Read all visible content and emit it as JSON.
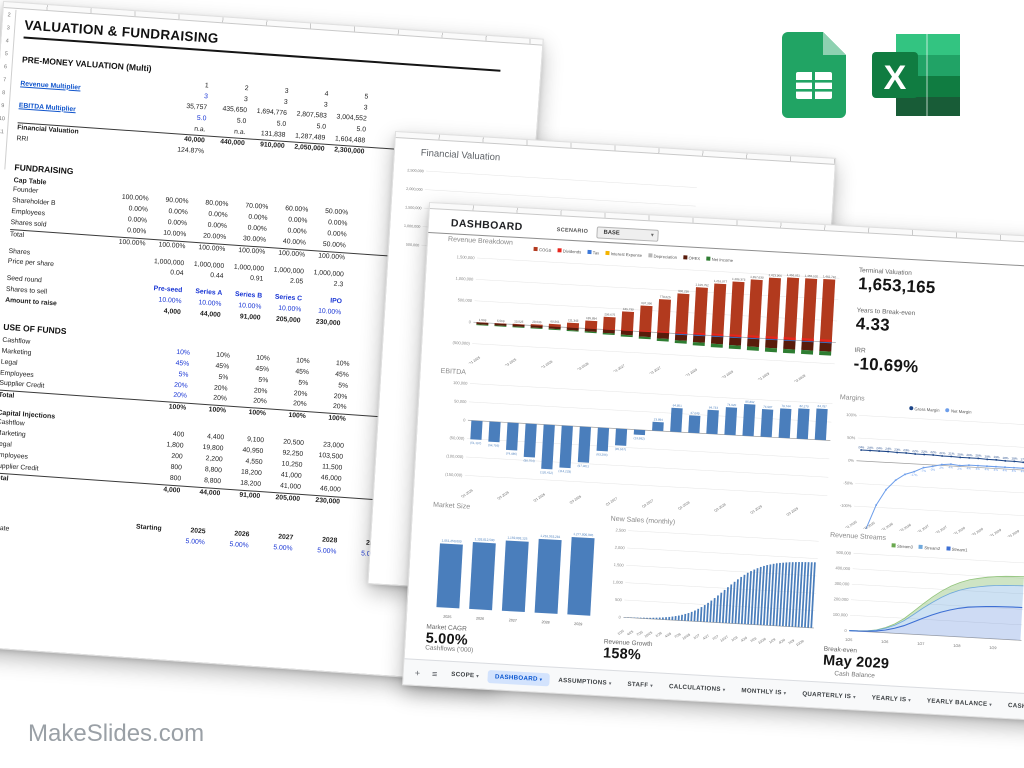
{
  "watermark": "MakeSlides.com",
  "icons": {
    "add_tab": "+",
    "tab_menu": "≡",
    "caret_down": "▾"
  },
  "left_sheet": {
    "row_numbers": [
      "2",
      "3",
      "4",
      "5",
      "6",
      "7",
      "8",
      "9",
      "10",
      "11"
    ],
    "title": "VALUATION & FUNDRAISING",
    "premoney": {
      "heading": "PRE-MONEY VALUATION (Multi)",
      "cols": [
        "1",
        "2",
        "3",
        "4",
        "5"
      ],
      "rows": [
        {
          "label": "Revenue Multiplier",
          "link": true,
          "lines": [
            {
              "v": [
                "3",
                "3",
                "3",
                "3",
                "3"
              ],
              "blueFirst": true
            },
            {
              "v": [
                "35,757",
                "435,650",
                "1,694,776",
                "2,807,583",
                "3,004,552"
              ]
            }
          ]
        },
        {
          "label": "EBITDA Multiplier",
          "link": true,
          "lines": [
            {
              "v": [
                "5.0",
                "5.0",
                "5.0",
                "5.0",
                "5.0"
              ],
              "blueFirst": true
            },
            {
              "v": [
                "n.a.",
                "n.a.",
                "131,838",
                "1,287,489",
                "1,604,488"
              ]
            }
          ]
        },
        {
          "label": "Financial Valuation",
          "bold": true,
          "topline": true,
          "lines": [
            {
              "v": [
                "40,000",
                "440,000",
                "910,000",
                "2,050,000",
                "2,300,000"
              ]
            }
          ]
        },
        {
          "label": "RRI",
          "lines": [
            {
              "v": [
                "124.87%",
                "",
                "",
                "",
                ""
              ]
            }
          ]
        }
      ]
    },
    "fundraising": {
      "heading": "FUNDRAISING",
      "subhead": "Cap Table",
      "rows": [
        {
          "label": "Founder",
          "v": [
            "100.00%",
            "90.00%",
            "80.00%",
            "70.00%",
            "60.00%",
            "50.00%"
          ]
        },
        {
          "label": "Shareholder B",
          "v": [
            "0.00%",
            "0.00%",
            "0.00%",
            "0.00%",
            "0.00%",
            "0.00%"
          ]
        },
        {
          "label": "Employees",
          "v": [
            "0.00%",
            "0.00%",
            "0.00%",
            "0.00%",
            "0.00%",
            "0.00%"
          ]
        },
        {
          "label": "Shares sold",
          "v": [
            "0.00%",
            "10.00%",
            "20.00%",
            "30.00%",
            "40.00%",
            "50.00%"
          ]
        },
        {
          "label": "Total",
          "v": [
            "100.00%",
            "100.00%",
            "100.00%",
            "100.00%",
            "100.00%",
            "100.00%"
          ],
          "topline": true
        },
        {
          "label": "",
          "v": [
            "",
            "",
            "",
            "",
            "",
            ""
          ],
          "spacer": true
        },
        {
          "label": "Shares",
          "v": [
            "",
            "1,000,000",
            "1,000,000",
            "1,000,000",
            "1,000,000",
            "1,000,000"
          ]
        },
        {
          "label": "Price per share",
          "v": [
            "",
            "0.04",
            "0.44",
            "0.91",
            "2.05",
            "2.3"
          ]
        },
        {
          "label": "",
          "v": [
            "",
            "",
            "",
            "",
            "",
            ""
          ],
          "spacer": true
        },
        {
          "label": "Seed round",
          "v": [
            "",
            "Pre-seed",
            "Series A",
            "Series B",
            "Series C",
            "IPO"
          ],
          "blue": true,
          "boldvals": true
        },
        {
          "label": "Shares to sell",
          "v": [
            "",
            "10.00%",
            "10.00%",
            "10.00%",
            "10.00%",
            "10.00%"
          ],
          "blue": true
        },
        {
          "label": "Amount to raise",
          "v": [
            "",
            "4,000",
            "44,000",
            "91,000",
            "205,000",
            "230,000"
          ],
          "bold": true
        }
      ]
    },
    "use_of_funds": {
      "heading": "USE OF FUNDS",
      "pct_rows": [
        {
          "label": "Cashflow",
          "v": [
            "10%",
            "10%",
            "10%",
            "10%",
            "10%"
          ],
          "blueFirst": true
        },
        {
          "label": "Marketing",
          "v": [
            "45%",
            "45%",
            "45%",
            "45%",
            "45%"
          ],
          "blueFirst": true
        },
        {
          "label": "Legal",
          "v": [
            "5%",
            "5%",
            "5%",
            "5%",
            "5%"
          ],
          "blueFirst": true
        },
        {
          "label": "Employees",
          "v": [
            "20%",
            "20%",
            "20%",
            "20%",
            "20%"
          ],
          "blueFirst": true
        },
        {
          "label": "Supplier Credit",
          "v": [
            "20%",
            "20%",
            "20%",
            "20%",
            "20%"
          ],
          "blueFirst": true
        },
        {
          "label": "Total",
          "v": [
            "100%",
            "100%",
            "100%",
            "100%",
            "100%"
          ],
          "bold": true,
          "topline": true
        }
      ],
      "subhead": "Capital Injections",
      "amount_rows": [
        {
          "label": "Cashflow",
          "v": [
            "400",
            "4,400",
            "9,100",
            "20,500",
            "23,000"
          ]
        },
        {
          "label": "Marketing",
          "v": [
            "1,800",
            "19,800",
            "40,950",
            "92,250",
            "103,500"
          ]
        },
        {
          "label": "Legal",
          "v": [
            "200",
            "2,200",
            "4,550",
            "10,250",
            "11,500"
          ]
        },
        {
          "label": "Employees",
          "v": [
            "800",
            "8,800",
            "18,200",
            "41,000",
            "46,000"
          ]
        },
        {
          "label": "Supplier Credit",
          "v": [
            "800",
            "8,800",
            "18,200",
            "41,000",
            "46,000"
          ]
        },
        {
          "label": "Total",
          "v": [
            "4,000",
            "44,000",
            "91,000",
            "205,000",
            "230,000"
          ],
          "bold": true,
          "topline": true
        }
      ]
    },
    "dcf": {
      "heading": "C",
      "cols": [
        "Starting",
        "2025",
        "2026",
        "2027",
        "2028",
        "2029"
      ],
      "rows": [
        {
          "label": "e Rate",
          "v": [
            "",
            "5.00%",
            "5.00%",
            "5.00%",
            "5.00%",
            "5.00%"
          ],
          "blue": true
        }
      ]
    }
  },
  "mid_sheet": {
    "title": "Financial Valuation",
    "yticks": [
      2500000,
      2000000,
      1500000,
      1000000,
      500000
    ]
  },
  "dashboard": {
    "title": "DASHBOARD",
    "scenario": {
      "label": "SCENARIO",
      "value": "BASE"
    },
    "kpis": [
      {
        "label": "Terminal Valuation",
        "value": "1,653,165"
      },
      {
        "label": "Years to Break-even",
        "value": "4.33"
      },
      {
        "label": "IRR",
        "value": "-10.69%"
      }
    ],
    "market_cagr": {
      "label": "Market CAGR",
      "value": "5.00%"
    },
    "revenue_growth": {
      "label": "Revenue Growth",
      "value": "158%"
    },
    "break_even": {
      "label": "Break-even",
      "value": "May 2029"
    },
    "cashflows_title": "Cashflows ('000)",
    "cash_balance_title": "Cash Balance",
    "tabs": {
      "items": [
        "SCOPE",
        "DASHBOARD",
        "ASSUMPTIONS",
        "STAFF",
        "CALCULATIONS",
        "MONTHLY IS",
        "QUARTERLY IS",
        "YEARLY IS",
        "YEARLY BALANCE",
        "CASHFLOW",
        "VALUATION"
      ],
      "active": "DASHBOARD"
    },
    "charts": {
      "quarter_categories": [
        "Q1 2025",
        "Q2 2025",
        "Q3 2025",
        "Q4 2025",
        "Q1 2026",
        "Q2 2026",
        "Q3 2026",
        "Q4 2026",
        "Q1 2027",
        "Q2 2027",
        "Q3 2027",
        "Q4 2027",
        "Q1 2028",
        "Q2 2028",
        "Q3 2028",
        "Q4 2028",
        "Q1 2029",
        "Q2 2029",
        "Q3 2029",
        "Q4 2029"
      ],
      "revenue_breakdown": {
        "type": "stacked-bar",
        "title": "Revenue Breakdown",
        "legend": [
          {
            "label": "COGS",
            "color": "#b23a1e"
          },
          {
            "label": "Dividends",
            "color": "#e8251c"
          },
          {
            "label": "Tax",
            "color": "#3c78d8"
          },
          {
            "label": "Interest Expense",
            "color": "#f4b400"
          },
          {
            "label": "Depreciation",
            "color": "#b7b7b7"
          },
          {
            "label": "OPEX",
            "color": "#591c0b"
          },
          {
            "label": "Net Income",
            "color": "#2e7d32"
          }
        ],
        "totals": [
          1569,
          5569,
          13525,
          29636,
          60561,
          111343,
          185894,
          296675,
          445730,
          607356,
          778625,
          936295,
          1105752,
          1216077,
          1286373,
          1357630,
          1423966,
          1452011,
          1455102,
          1462742
        ],
        "ymin": -500000,
        "ymax": 1600000,
        "yticks": [
          1500000,
          1000000,
          500000,
          0,
          -500000
        ]
      },
      "ebitda": {
        "type": "bar",
        "title": "EBITDA",
        "color": "#4a7ebc",
        "values": [
          -51197,
          -54756,
          -74486,
          -90754,
          -120412,
          -114233,
          -97021,
          -63296,
          -45667,
          -13582,
          23894,
          64851,
          47049,
          64733,
          74920,
          85892,
          74987,
          79744,
          82270,
          84787
        ],
        "ymin": -150000,
        "ymax": 100000,
        "yticks": [
          100000,
          50000,
          0,
          -50000,
          -100000,
          -150000
        ]
      },
      "margins": {
        "type": "line",
        "title": "Margins",
        "legend": [
          {
            "label": "Gross Margin",
            "color": "#1c4587"
          },
          {
            "label": "Net Margin",
            "color": "#6d9eeb"
          }
        ],
        "series": [
          {
            "name": "Gross Margin",
            "color": "#1c4587",
            "values": [
              24,
              24,
              24,
              24,
              23,
              23,
              22,
              22,
              22,
              21,
              21,
              20,
              20,
              20,
              19,
              19,
              18,
              18,
              17,
              17
            ]
          },
          {
            "name": "Net Margin",
            "color": "#6d9eeb",
            "values": [
              -240,
              -150,
              -95,
              -60,
              -38,
              -24,
              -17,
              -7,
              -3,
              2,
              4,
              2,
              4,
              4,
              4,
              4,
              4,
              4,
              4,
              3
            ]
          }
        ],
        "ymin": -100,
        "ymax": 100,
        "yticks": [
          100,
          50,
          0,
          -50,
          -100
        ]
      },
      "market_size": {
        "type": "bar",
        "title": "Market Size",
        "color": "#4a7ebc",
        "categories": [
          "2025",
          "2026",
          "2027",
          "2028",
          "2029"
        ],
        "values": [
          1051250000,
          1103812500,
          1159003125,
          1216953281,
          1277800945
        ],
        "ymin": 0,
        "ymax": 1400000000,
        "yticks": []
      },
      "new_sales": {
        "type": "bar",
        "title": "New Sales (monthly)",
        "color": "#4a7ebc",
        "values": [
          7,
          8,
          10,
          12,
          14,
          17,
          21,
          25,
          30,
          36,
          43,
          51,
          61,
          73,
          86,
          101,
          119,
          140,
          166,
          196,
          227,
          266,
          311,
          364,
          420,
          483,
          551,
          622,
          700,
          782,
          866,
          950,
          1034,
          1118,
          1200,
          1278,
          1349,
          1417,
          1480,
          1536,
          1584,
          1627,
          1668,
          1704,
          1734,
          1758,
          1780,
          1799,
          1814,
          1827,
          1839,
          1850,
          1858,
          1864,
          1870,
          1875,
          1879,
          1883,
          1886,
          1888
        ],
        "xticks": [
          "1/25",
          "4/25",
          "7/25",
          "10/25",
          "1/26",
          "4/26",
          "7/26",
          "10/26",
          "1/27",
          "4/27",
          "7/27",
          "10/27",
          "1/28",
          "4/28",
          "7/28",
          "10/28",
          "1/29",
          "4/29",
          "7/29",
          "10/29"
        ],
        "ymin": 0,
        "ymax": 2500,
        "yticks": [
          2500,
          2000,
          1500,
          1000,
          500,
          0
        ]
      },
      "revenue_streams": {
        "type": "area",
        "title": "Revenue Streams",
        "legend": [
          {
            "label": "Stream3",
            "color": "#6aa84f"
          },
          {
            "label": "Stream2",
            "color": "#6fa8dc"
          },
          {
            "label": "Stream1",
            "color": "#3d6fd4"
          }
        ],
        "series": [
          {
            "name": "Stream1",
            "color": "#3d6fd4",
            "fill": "rgba(61,111,212,0.25)",
            "values": [
              800,
              1500,
              3000,
              8000,
              18000,
              32000,
              52000,
              78000,
              105000,
              130000,
              152000,
              170000,
              184000,
              194000,
              200000,
              205000,
              208000,
              210000,
              211000,
              212000
            ]
          },
          {
            "name": "Stream2",
            "color": "#6fa8dc",
            "fill": "rgba(111,168,220,0.35)",
            "values": [
              400,
              900,
              2000,
              5000,
              11000,
              20000,
              33000,
              49000,
              66000,
              82000,
              96000,
              108000,
              117000,
              124000,
              129000,
              133000,
              136000,
              138000,
              139000,
              140000
            ]
          },
          {
            "name": "Stream3",
            "color": "#93c47d",
            "fill": "rgba(147,196,125,0.45)",
            "values": [
              200,
              400,
              800,
              2000,
              4500,
              8500,
              14000,
              21000,
              28500,
              35500,
              41500,
              46500,
              50500,
              53500,
              55500,
              57000,
              58000,
              58500,
              59000,
              59000
            ]
          }
        ],
        "xticks": [
          "1/25",
          "1/26",
          "1/27",
          "1/28",
          "1/29"
        ],
        "xtick_idx": [
          0,
          4,
          8,
          12,
          16
        ],
        "ymin": 0,
        "ymax": 500000,
        "yticks": [
          500000,
          400000,
          300000,
          200000,
          100000,
          0
        ]
      }
    }
  }
}
